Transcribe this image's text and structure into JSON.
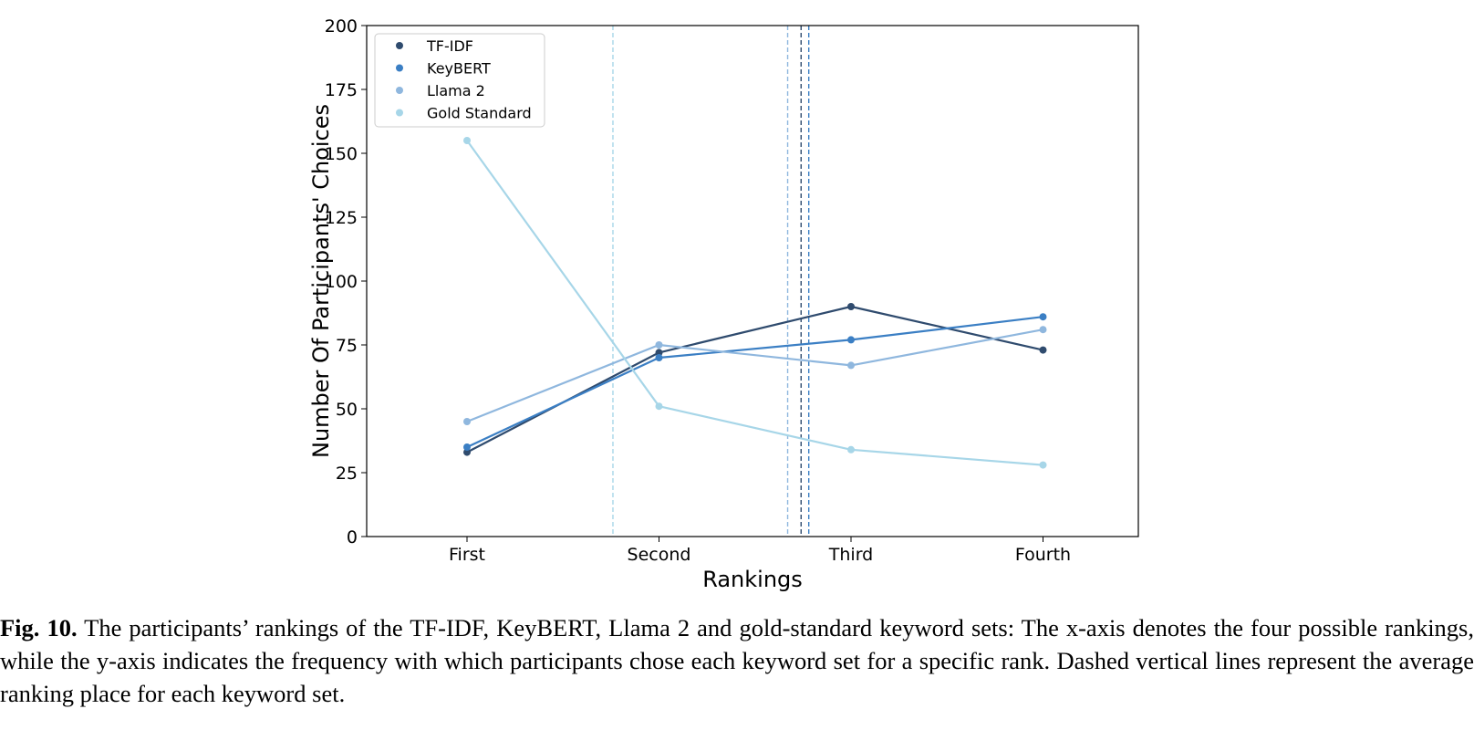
{
  "chart_data": {
    "type": "line",
    "categories": [
      "First",
      "Second",
      "Third",
      "Fourth"
    ],
    "xlabel": "Rankings",
    "ylabel": "Number Of Participants' Choices",
    "ylim": [
      0,
      200
    ],
    "yticks": [
      0,
      25,
      50,
      75,
      100,
      125,
      150,
      175,
      200
    ],
    "grid": false,
    "legend_position": "top-left",
    "series": [
      {
        "name": "TF-IDF",
        "color": "#2f4b6e",
        "values": [
          33,
          72,
          90,
          73
        ],
        "avg_rank": 2.74
      },
      {
        "name": "KeyBERT",
        "color": "#3b7fc4",
        "values": [
          35,
          70,
          77,
          86
        ],
        "avg_rank": 2.78
      },
      {
        "name": "Llama 2",
        "color": "#8fb7de",
        "values": [
          45,
          75,
          67,
          81
        ],
        "avg_rank": 2.67
      },
      {
        "name": "Gold Standard",
        "color": "#a7d6e8",
        "values": [
          155,
          51,
          34,
          28
        ],
        "avg_rank": 1.76
      }
    ]
  },
  "caption": {
    "label": "Fig. 10.",
    "text": " The participants’ rankings of the TF-IDF, KeyBERT, Llama 2 and gold-standard keyword sets: The x-axis denotes the four possible rankings, while the y-axis indicates the frequency with which participants chose each keyword set for a specific rank. Dashed vertical lines represent the average ranking place for each keyword set."
  }
}
